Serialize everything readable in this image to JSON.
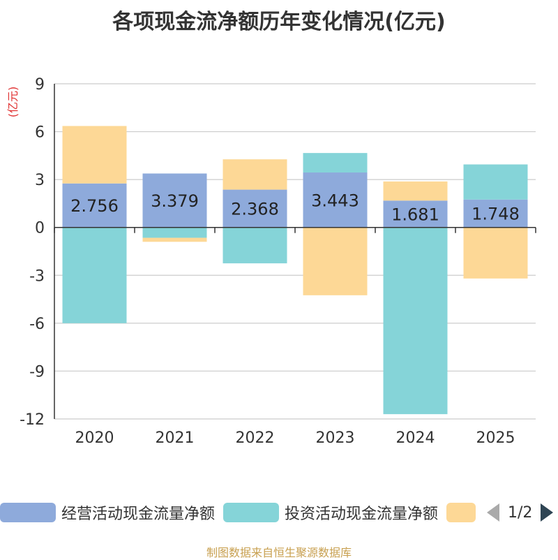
{
  "chart_data": {
    "type": "bar",
    "stacked": true,
    "title": "各项现金流净额历年变化情况(亿元)",
    "ylabel": "(亿元)",
    "xlabel": "",
    "ylim": [
      -12,
      9
    ],
    "yticks": [
      9,
      6,
      3,
      0,
      -3,
      -6,
      -9,
      -12
    ],
    "categories": [
      "2020",
      "2021",
      "2022",
      "2023",
      "2024",
      "2025"
    ],
    "series": [
      {
        "name": "经营活动现金流量净额",
        "color": "#8eaadb",
        "values": [
          2.756,
          3.379,
          2.368,
          3.443,
          1.681,
          1.748
        ],
        "labels": [
          "2.756",
          "3.379",
          "2.368",
          "3.443",
          "1.681",
          "1.748"
        ]
      },
      {
        "name": "投资活动现金流量净额",
        "color": "#85d4d8",
        "values": [
          -6.0,
          -0.65,
          -2.25,
          1.22,
          -11.7,
          2.2
        ]
      },
      {
        "name": "",
        "color": "#fdd896",
        "values": [
          3.6,
          -0.25,
          1.9,
          -4.25,
          1.2,
          -3.2
        ]
      }
    ],
    "legend_position": "bottom"
  },
  "pager": {
    "text": "1/2"
  },
  "source": "制图数据来自恒生聚源数据库"
}
